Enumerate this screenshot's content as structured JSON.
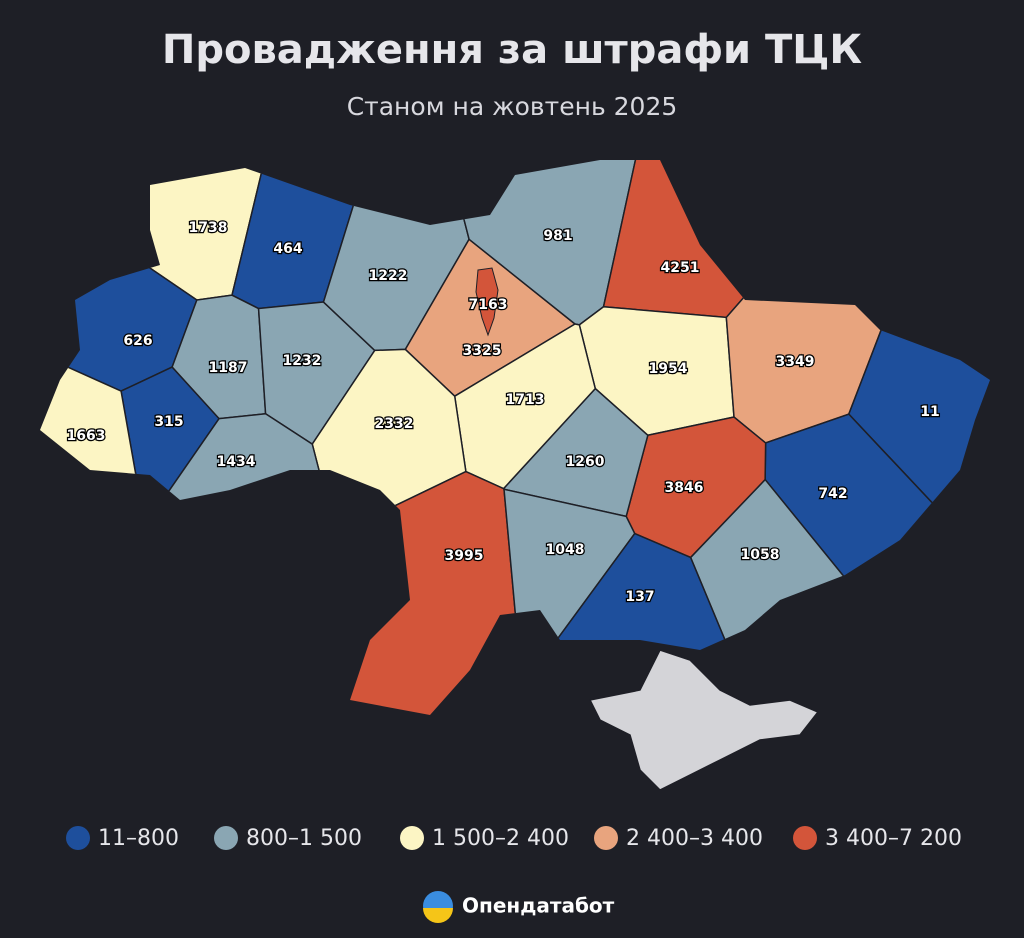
{
  "header": {
    "title": "Провадження за штрафи ТЦК",
    "subtitle": "Станом на жовтень 2025"
  },
  "regions": [
    {
      "value": 1738,
      "color": "#fcf5c4"
    },
    {
      "value": 464,
      "color": "#1e4f9c"
    },
    {
      "value": 626,
      "color": "#1e4f9c"
    },
    {
      "value": 1187,
      "color": "#8aa6b3"
    },
    {
      "value": 1232,
      "color": "#8aa6b3"
    },
    {
      "value": 1222,
      "color": "#8aa6b3"
    },
    {
      "value": 3325,
      "color": "#e8a47e"
    },
    {
      "value": 981,
      "color": "#8aa6b3"
    },
    {
      "value": 4251,
      "color": "#d3553a"
    },
    {
      "value": 1954,
      "color": "#fcf5c4"
    },
    {
      "value": 3349,
      "color": "#e8a47e"
    },
    {
      "value": 11,
      "color": "#1e4f9c"
    },
    {
      "value": 742,
      "color": "#1e4f9c"
    },
    {
      "value": 1058,
      "color": "#8aa6b3"
    },
    {
      "value": 3846,
      "color": "#d3553a"
    },
    {
      "value": 1260,
      "color": "#8aa6b3"
    },
    {
      "value": 1713,
      "color": "#fcf5c4"
    },
    {
      "value": 2332,
      "color": "#fcf5c4"
    },
    {
      "value": 315,
      "color": "#1e4f9c"
    },
    {
      "value": 1663,
      "color": "#fcf5c4"
    },
    {
      "value": 1434,
      "color": "#8aa6b3"
    },
    {
      "value": 3995,
      "color": "#d3553a"
    },
    {
      "value": 1048,
      "color": "#8aa6b3"
    },
    {
      "value": 137,
      "color": "#1e4f9c"
    },
    {
      "value": 7163,
      "color": "#d3553a"
    }
  ],
  "legend": [
    {
      "label": "11–800",
      "color": "#1e4f9c"
    },
    {
      "label": "800–1 500",
      "color": "#8aa6b3"
    },
    {
      "label": "1 500–2 400",
      "color": "#fcf5c4"
    },
    {
      "label": "2 400–3 400",
      "color": "#e8a47e"
    },
    {
      "label": "3 400–7 200",
      "color": "#d3553a"
    }
  ],
  "brand": "Опендатабот"
}
